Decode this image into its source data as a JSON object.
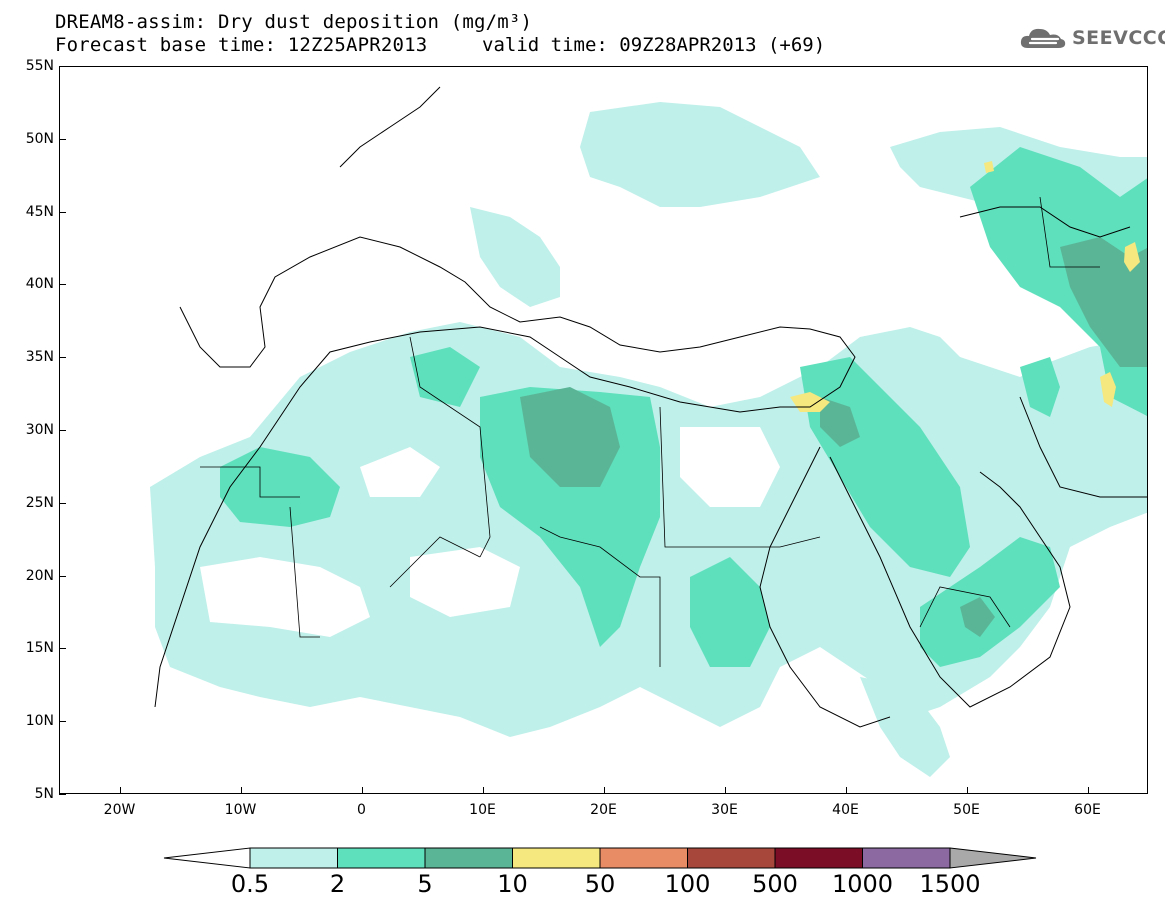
{
  "title": {
    "line1": "DREAM8-assim: Dry dust deposition (mg/m³)",
    "line2": "Forecast base time: 12Z25APR2013",
    "valid": "valid time: 09Z28APR2013 (+69)"
  },
  "logo": {
    "text": "SEEVCCC",
    "icon": "cloud-logo-icon",
    "color": "#6f6f6f"
  },
  "map": {
    "region": "North Africa, Europe and Middle East",
    "lat_labels": [
      "55N",
      "50N",
      "45N",
      "40N",
      "35N",
      "30N",
      "25N",
      "20N",
      "15N",
      "10N",
      "5N"
    ],
    "lon_labels": [
      "20W",
      "10W",
      "0",
      "10E",
      "20E",
      "30E",
      "40E",
      "50E",
      "60E"
    ],
    "lat_range": [
      5,
      55
    ],
    "lon_range": [
      -25,
      65
    ]
  },
  "legend": {
    "labels": [
      "0.5",
      "2",
      "5",
      "10",
      "50",
      "100",
      "500",
      "1000",
      "1500"
    ],
    "colors": [
      "#bff0ea",
      "#5ee0bc",
      "#5ab596",
      "#f4e87e",
      "#e88c66",
      "#a7473c",
      "#7b0d26",
      "#8c6aa1"
    ],
    "under_color": "#ffffff",
    "over_color": "#a9a9a9",
    "unit": "mg/m³"
  }
}
